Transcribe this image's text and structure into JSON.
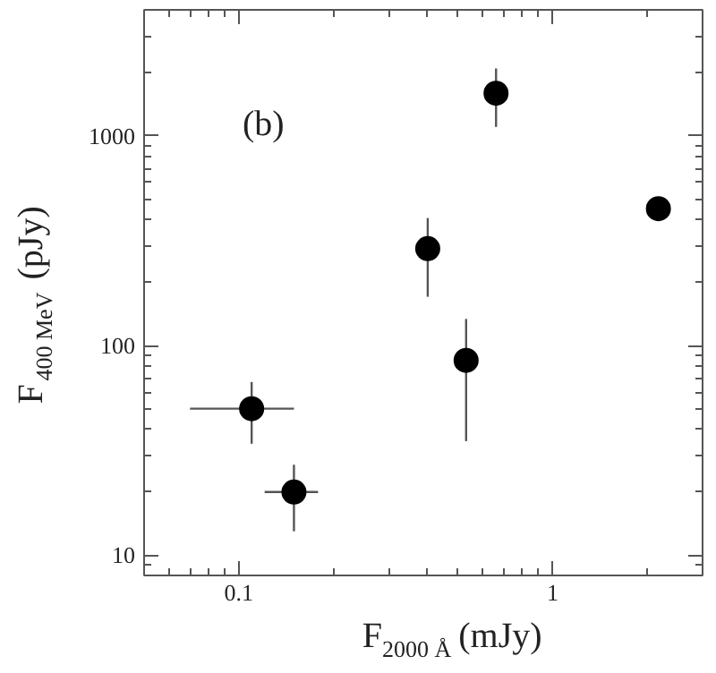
{
  "chart_data": {
    "type": "scatter",
    "xlabel": "F$_{2000 Å}$ (mJy)",
    "ylabel": "F$_{400 MeV}$ (pJy)",
    "annotations": [
      "(b)"
    ],
    "x": [
      0.11,
      0.15,
      0.4,
      0.53,
      0.66,
      2.17
    ],
    "values": [
      50,
      20,
      290,
      85,
      1600,
      450
    ],
    "errors": [
      [
        34,
        67
      ],
      [
        13,
        27
      ],
      [
        171,
        406
      ],
      [
        35,
        134
      ],
      [
        1105,
        2100
      ],
      null
    ],
    "xerrors": [
      [
        0.07,
        0.15
      ],
      [
        0.121,
        0.179
      ],
      null,
      null,
      null,
      null
    ],
    "color": "#000000",
    "marker": "circle",
    "log": "xy",
    "grid": false,
    "xlim": [
      0.05,
      3
    ],
    "ylim": [
      8,
      4000
    ],
    "xticks": [
      {
        "value": 0.1,
        "label": "0.1"
      },
      1
    ],
    "yticks": [
      10,
      100,
      1000
    ]
  }
}
